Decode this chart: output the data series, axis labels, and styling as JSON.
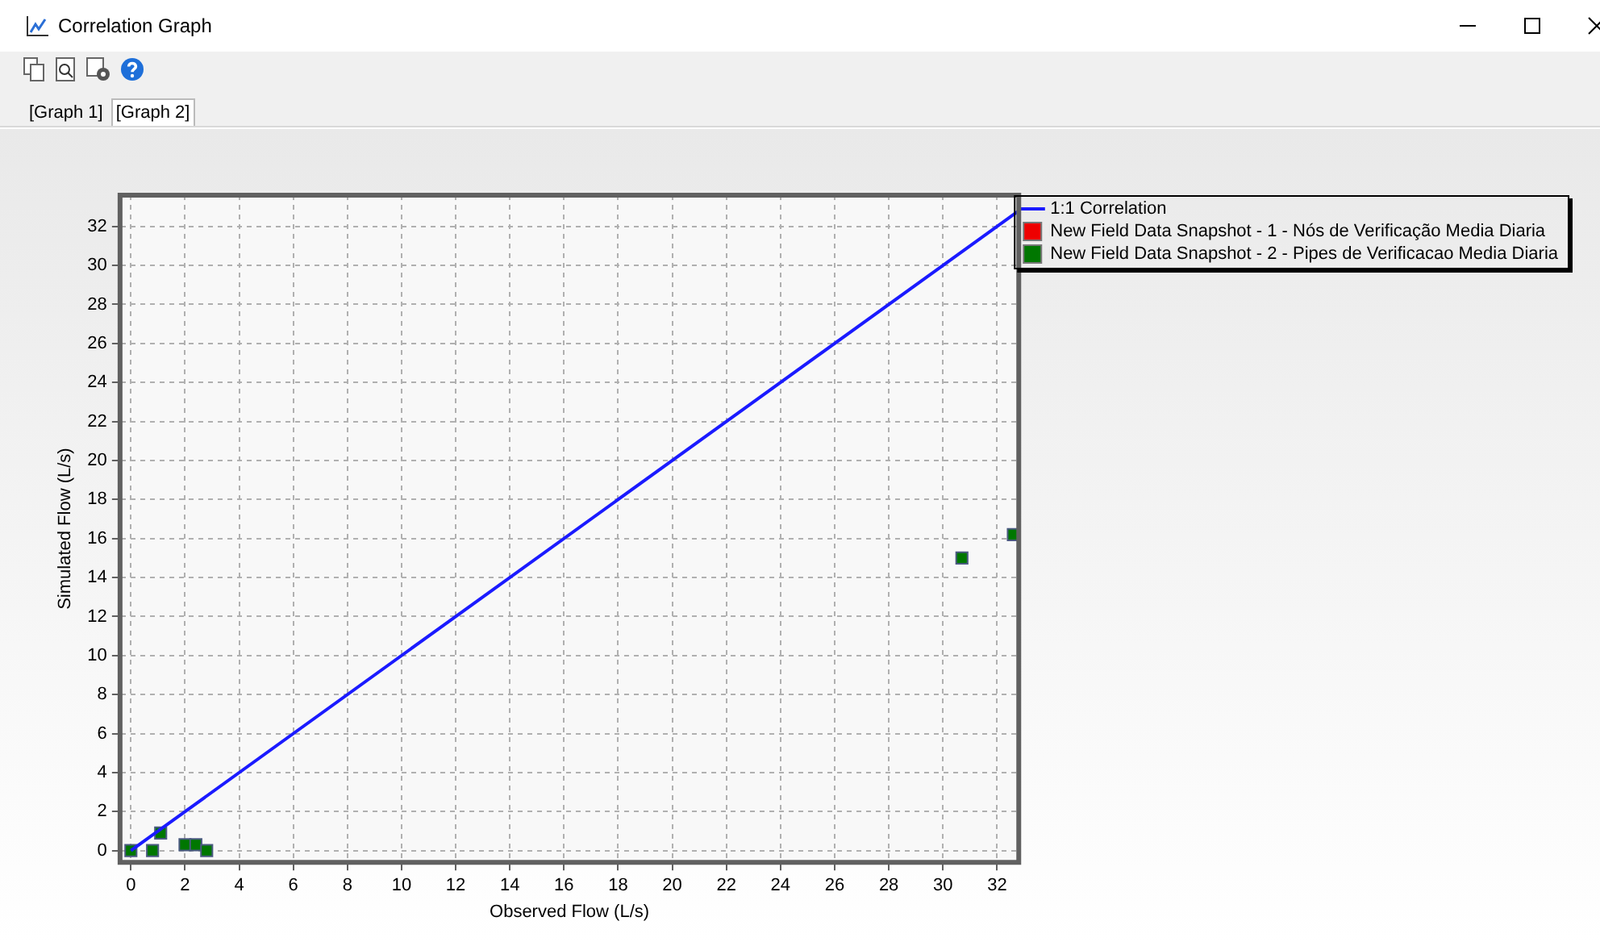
{
  "chart_data": {
    "type": "scatter",
    "title": "Correlation Graph",
    "annotations": [
      "[Graph 1]",
      "[Graph 2]"
    ],
    "xlabel": "Observed Flow (L/s)",
    "ylabel": "Simulated Flow (L/s)",
    "xlim": [
      -0.4,
      32.8
    ],
    "ylim": [
      -0.6,
      33.6
    ],
    "xticks": [
      0,
      2,
      4,
      6,
      8,
      10,
      12,
      14,
      16,
      18,
      20,
      22,
      24,
      26,
      28,
      30,
      32
    ],
    "yticks": [
      0,
      2,
      4,
      6,
      8,
      10,
      12,
      14,
      16,
      18,
      20,
      22,
      24,
      26,
      28,
      30,
      32
    ],
    "grid": true,
    "legend": "top right",
    "marker": "square",
    "series": [
      {
        "name": "1:1 Correlation",
        "type": "line",
        "marker": "none",
        "color": "#1a1aff",
        "x": [
          0,
          32.8
        ],
        "values": [
          0,
          32.8
        ]
      },
      {
        "name": "New Field Data Snapshot - 1 - Nós de Verificação Media Diaria",
        "color": "#ee0000"
      },
      {
        "name": "New Field Data Snapshot - 2 - Pipes de Verificacao Media Diaria",
        "color": "#007700",
        "x": [
          0,
          0.8,
          1.1,
          2.0,
          2.4,
          2.8,
          30.7,
          32.6
        ],
        "values": [
          0,
          0,
          0.9,
          0.3,
          0.3,
          0,
          15.0,
          16.2
        ]
      }
    ]
  }
}
